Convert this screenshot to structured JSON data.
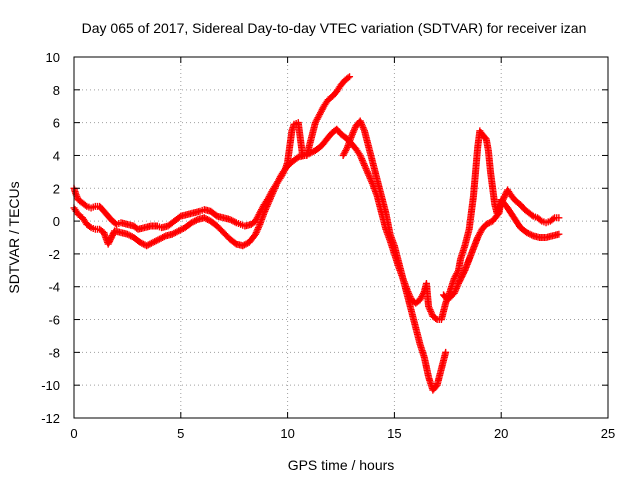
{
  "chart_data": {
    "type": "scatter",
    "title": "Day 065 of 2017, Sidereal Day-to-day VTEC variation (SDTVAR) for receiver izan",
    "xlabel": "GPS time / hours",
    "ylabel": "SDTVAR / TECUs",
    "xlim": [
      0,
      25
    ],
    "ylim": [
      -12,
      10
    ],
    "xticks": [
      0,
      5,
      10,
      15,
      20,
      25
    ],
    "yticks": [
      -12,
      -10,
      -8,
      -6,
      -4,
      -2,
      0,
      2,
      4,
      6,
      8,
      10
    ],
    "grid": true,
    "marker": "plus",
    "colors": {
      "series": "#ff0000",
      "grid": "#a0a0a0",
      "axis": "#000000"
    },
    "series": [
      {
        "points": [
          [
            0.0,
            2.0
          ],
          [
            0.1,
            1.6
          ],
          [
            0.2,
            1.3
          ],
          [
            0.4,
            1.1
          ],
          [
            0.6,
            0.9
          ],
          [
            0.8,
            0.8
          ],
          [
            1.0,
            0.9
          ],
          [
            1.2,
            0.9
          ],
          [
            1.4,
            0.6
          ],
          [
            1.6,
            0.3
          ],
          [
            1.8,
            0.0
          ],
          [
            2.0,
            -0.2
          ],
          [
            2.2,
            -0.1
          ],
          [
            2.5,
            -0.2
          ],
          [
            2.8,
            -0.3
          ],
          [
            3.0,
            -0.5
          ],
          [
            3.3,
            -0.4
          ],
          [
            3.6,
            -0.3
          ],
          [
            3.9,
            -0.3
          ],
          [
            4.1,
            -0.4
          ],
          [
            4.4,
            -0.3
          ],
          [
            4.6,
            -0.1
          ],
          [
            4.8,
            0.1
          ],
          [
            5.0,
            0.3
          ],
          [
            5.3,
            0.4
          ],
          [
            5.6,
            0.5
          ],
          [
            5.9,
            0.6
          ],
          [
            6.1,
            0.7
          ],
          [
            6.4,
            0.6
          ],
          [
            6.7,
            0.3
          ],
          [
            7.0,
            0.2
          ],
          [
            7.3,
            0.1
          ],
          [
            7.6,
            -0.1
          ],
          [
            7.8,
            -0.2
          ],
          [
            8.0,
            -0.3
          ],
          [
            8.3,
            -0.2
          ],
          [
            8.5,
            0.0
          ],
          [
            8.7,
            0.5
          ],
          [
            8.9,
            1.0
          ],
          [
            9.1,
            1.4
          ],
          [
            9.3,
            1.9
          ],
          [
            9.5,
            2.3
          ],
          [
            9.7,
            2.7
          ],
          [
            9.9,
            3.2
          ],
          [
            10.1,
            3.5
          ],
          [
            10.3,
            3.7
          ],
          [
            10.5,
            3.9
          ],
          [
            10.8,
            4.0
          ],
          [
            11.0,
            4.1
          ],
          [
            11.3,
            4.3
          ],
          [
            11.6,
            4.6
          ],
          [
            11.9,
            5.1
          ],
          [
            12.1,
            5.4
          ],
          [
            12.3,
            5.6
          ],
          [
            12.5,
            5.3
          ],
          [
            12.8,
            5.0
          ],
          [
            13.0,
            4.7
          ],
          [
            13.2,
            4.4
          ],
          [
            13.4,
            4.0
          ],
          [
            13.6,
            3.4
          ],
          [
            13.8,
            2.8
          ],
          [
            14.0,
            2.2
          ],
          [
            14.2,
            1.5
          ],
          [
            14.4,
            0.5
          ],
          [
            14.6,
            -0.5
          ],
          [
            14.8,
            -1.2
          ],
          [
            15.0,
            -2.0
          ],
          [
            15.2,
            -2.8
          ],
          [
            15.4,
            -3.5
          ],
          [
            15.6,
            -4.2
          ],
          [
            15.8,
            -4.8
          ],
          [
            16.0,
            -5.0
          ],
          [
            16.2,
            -4.8
          ],
          [
            16.4,
            -4.3
          ],
          [
            16.5,
            -3.8
          ],
          [
            16.6,
            -5.2
          ],
          [
            16.8,
            -5.8
          ],
          [
            17.0,
            -6.0
          ],
          [
            17.2,
            -6.0
          ],
          [
            17.4,
            -5.0
          ],
          [
            17.6,
            -4.3
          ],
          [
            17.8,
            -3.5
          ],
          [
            18.0,
            -3.0
          ],
          [
            18.1,
            -2.3
          ],
          [
            18.3,
            -1.5
          ],
          [
            18.5,
            -0.5
          ],
          [
            18.6,
            0.5
          ],
          [
            18.7,
            1.5
          ],
          [
            18.8,
            3.0
          ],
          [
            18.9,
            4.5
          ],
          [
            19.0,
            5.5
          ],
          [
            19.1,
            5.3
          ],
          [
            19.3,
            5.0
          ],
          [
            19.4,
            4.3
          ],
          [
            19.5,
            3.0
          ],
          [
            19.6,
            2.0
          ],
          [
            19.7,
            1.0
          ],
          [
            19.8,
            0.5
          ],
          [
            20.3,
            1.9
          ],
          [
            20.5,
            1.5
          ],
          [
            20.7,
            1.2
          ],
          [
            20.9,
            1.0
          ],
          [
            21.1,
            0.7
          ],
          [
            21.3,
            0.5
          ],
          [
            21.5,
            0.3
          ],
          [
            21.7,
            0.2
          ],
          [
            21.9,
            0.0
          ],
          [
            22.1,
            -0.1
          ],
          [
            22.3,
            0.0
          ],
          [
            22.5,
            0.2
          ],
          [
            22.7,
            0.2
          ]
        ]
      },
      {
        "points": [
          [
            0.0,
            0.8
          ],
          [
            0.2,
            0.4
          ],
          [
            0.4,
            0.2
          ],
          [
            0.6,
            -0.2
          ],
          [
            0.8,
            -0.4
          ],
          [
            1.0,
            -0.5
          ],
          [
            1.2,
            -0.5
          ],
          [
            1.4,
            -0.7
          ],
          [
            1.6,
            -1.4
          ],
          [
            1.9,
            -0.6
          ],
          [
            2.2,
            -0.7
          ],
          [
            2.5,
            -0.8
          ],
          [
            2.8,
            -1.0
          ],
          [
            3.1,
            -1.3
          ],
          [
            3.4,
            -1.5
          ],
          [
            3.7,
            -1.3
          ],
          [
            4.0,
            -1.1
          ],
          [
            4.3,
            -0.9
          ],
          [
            4.6,
            -0.8
          ],
          [
            4.9,
            -0.6
          ],
          [
            5.2,
            -0.4
          ],
          [
            5.5,
            -0.1
          ],
          [
            5.8,
            0.1
          ],
          [
            6.1,
            0.2
          ],
          [
            6.4,
            0.0
          ],
          [
            6.7,
            -0.3
          ],
          [
            7.0,
            -0.7
          ],
          [
            7.3,
            -1.1
          ],
          [
            7.6,
            -1.4
          ],
          [
            7.9,
            -1.5
          ],
          [
            8.2,
            -1.3
          ],
          [
            8.5,
            -0.8
          ],
          [
            8.7,
            -0.2
          ],
          [
            8.9,
            0.5
          ],
          [
            9.1,
            1.1
          ],
          [
            9.3,
            1.7
          ],
          [
            9.5,
            2.3
          ],
          [
            9.7,
            2.8
          ],
          [
            9.9,
            3.2
          ],
          [
            10.0,
            3.6
          ],
          [
            10.2,
            5.5
          ],
          [
            10.3,
            5.9
          ],
          [
            10.5,
            6.0
          ],
          [
            10.7,
            4.0
          ],
          [
            10.9,
            4.0
          ],
          [
            11.1,
            5.0
          ],
          [
            11.3,
            6.0
          ],
          [
            11.5,
            6.5
          ],
          [
            11.7,
            7.0
          ],
          [
            11.9,
            7.4
          ],
          [
            12.1,
            7.6
          ],
          [
            12.3,
            7.9
          ],
          [
            12.5,
            8.3
          ],
          [
            12.7,
            8.6
          ],
          [
            12.9,
            8.8
          ],
          [
            12.6,
            4.0
          ],
          [
            12.8,
            4.5
          ],
          [
            13.0,
            5.2
          ],
          [
            13.2,
            5.8
          ],
          [
            13.4,
            6.1
          ],
          [
            13.6,
            5.5
          ],
          [
            13.8,
            4.5
          ],
          [
            14.0,
            3.5
          ],
          [
            14.2,
            2.5
          ],
          [
            14.4,
            1.5
          ],
          [
            14.6,
            0.5
          ],
          [
            14.8,
            -0.8
          ],
          [
            15.0,
            -1.5
          ],
          [
            15.2,
            -2.5
          ],
          [
            15.4,
            -3.5
          ],
          [
            15.6,
            -4.5
          ],
          [
            15.8,
            -5.5
          ],
          [
            16.0,
            -6.5
          ],
          [
            16.2,
            -7.5
          ],
          [
            16.4,
            -8.3
          ],
          [
            16.6,
            -9.5
          ],
          [
            16.8,
            -10.3
          ],
          [
            17.0,
            -10.0
          ],
          [
            17.2,
            -9.0
          ],
          [
            17.4,
            -8.0
          ],
          [
            17.3,
            -4.5
          ],
          [
            17.5,
            -4.8
          ],
          [
            17.8,
            -4.4
          ],
          [
            18.0,
            -3.8
          ],
          [
            18.3,
            -3.0
          ],
          [
            18.6,
            -2.0
          ],
          [
            18.9,
            -1.0
          ],
          [
            19.1,
            -0.5
          ],
          [
            19.3,
            -0.2
          ],
          [
            19.6,
            0.0
          ],
          [
            19.9,
            0.5
          ],
          [
            20.0,
            1.3
          ],
          [
            20.3,
            0.8
          ],
          [
            20.6,
            0.2
          ],
          [
            20.9,
            -0.4
          ],
          [
            21.2,
            -0.7
          ],
          [
            21.5,
            -0.9
          ],
          [
            21.8,
            -1.0
          ],
          [
            22.1,
            -1.0
          ],
          [
            22.4,
            -0.9
          ],
          [
            22.7,
            -0.8
          ]
        ]
      }
    ]
  }
}
